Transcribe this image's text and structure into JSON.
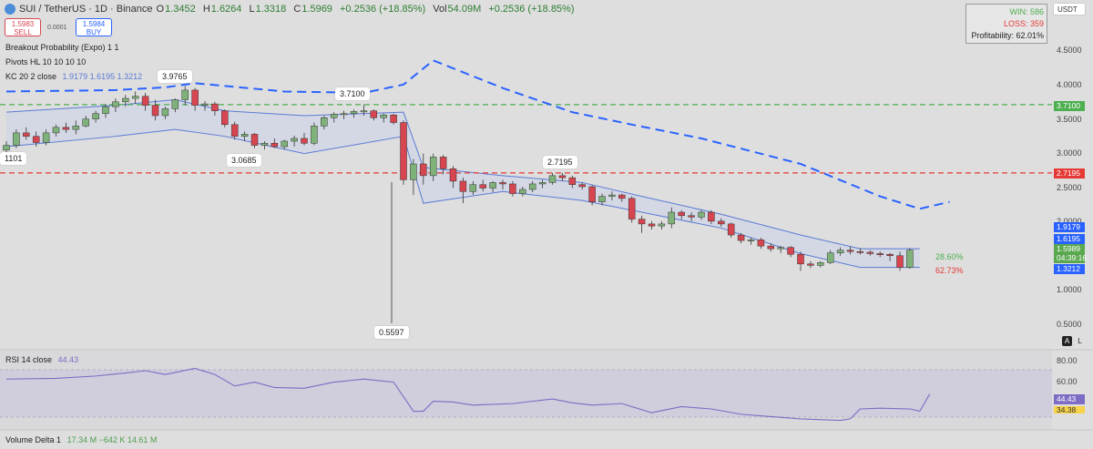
{
  "header": {
    "symbol": "SUI / TetherUS · 1D · Binance",
    "open_label": "O",
    "open": "1.3452",
    "high_label": "H",
    "high": "1.6264",
    "low_label": "L",
    "low": "1.3318",
    "close_label": "C",
    "close": "1.5969",
    "change": "+0.2536 (+18.85%)",
    "vol_label": "Vol",
    "vol": "54.09M",
    "vol_change": "+0.2536 (+18.85%)"
  },
  "trade": {
    "sell_price": "1.5983",
    "sell_label": "SELL",
    "spread": "0.0001",
    "buy_price": "1.5984",
    "buy_label": "BUY"
  },
  "indicators": {
    "breakout": "Breakout Probability (Expo) 1 1",
    "pivots": "Pivots HL 10 10 10 10",
    "kc_label": "KC 20 2 close",
    "kc_values": "1.9179  1.6195  1.3212"
  },
  "stats": {
    "win": "WIN: 586",
    "loss": "LOSS: 359",
    "profitability": "Profitability: 62.01%"
  },
  "currency": "USDT",
  "price_scale": [
    "4.5000",
    "4.0000",
    "3.5000",
    "3.0000",
    "2.5000",
    "2.0000",
    "1.5000",
    "1.0000",
    "0.5000"
  ],
  "price_tags": {
    "level_high": "3.7100",
    "level_mid": "2.7195",
    "kc_upper": "1.9179",
    "kc_basis": "1.6195",
    "last": "1.5989",
    "countdown": "04:39:16",
    "kc_lower": "1.3212"
  },
  "probabilities": {
    "up": "28.60%",
    "down": "62.73%"
  },
  "pivot_labels": [
    "1101",
    "3.9765",
    "3.0685",
    "3.7100",
    "0.5597",
    "2.7195"
  ],
  "rsi": {
    "label": "RSI 14 close",
    "value": "44.43",
    "scale": [
      "80.00",
      "60.00"
    ],
    "tag": "44.43",
    "ma_tag": "34.38"
  },
  "volume_delta": {
    "label": "Volume Delta 1",
    "values": "17.34 M  −642 K  14.61 M"
  },
  "controls": {
    "auto": "A",
    "log": "L"
  },
  "colors": {
    "up": "#7fb27a",
    "down": "#d64550",
    "kc": "#5b7bd5",
    "kc_dash": "#2962ff",
    "level_green": "#4caf50",
    "level_red": "#e53935",
    "rsi": "#7e6bc4"
  },
  "chart_data": {
    "type": "candlestick",
    "ylim": [
      0.35,
      4.65
    ],
    "levels": [
      3.71,
      2.7195
    ],
    "candles": [
      [
        3.05,
        3.18,
        2.98,
        3.12
      ],
      [
        3.12,
        3.35,
        3.08,
        3.3
      ],
      [
        3.3,
        3.38,
        3.2,
        3.25
      ],
      [
        3.25,
        3.32,
        3.1,
        3.16
      ],
      [
        3.16,
        3.35,
        3.12,
        3.3
      ],
      [
        3.3,
        3.42,
        3.25,
        3.38
      ],
      [
        3.38,
        3.45,
        3.3,
        3.35
      ],
      [
        3.35,
        3.48,
        3.28,
        3.4
      ],
      [
        3.4,
        3.55,
        3.38,
        3.5
      ],
      [
        3.5,
        3.62,
        3.45,
        3.58
      ],
      [
        3.58,
        3.72,
        3.52,
        3.68
      ],
      [
        3.68,
        3.8,
        3.6,
        3.75
      ],
      [
        3.75,
        3.85,
        3.68,
        3.8
      ],
      [
        3.8,
        3.9,
        3.72,
        3.83
      ],
      [
        3.83,
        3.88,
        3.62,
        3.7
      ],
      [
        3.7,
        3.78,
        3.48,
        3.55
      ],
      [
        3.55,
        3.68,
        3.5,
        3.65
      ],
      [
        3.65,
        3.8,
        3.6,
        3.78
      ],
      [
        3.78,
        3.98,
        3.7,
        3.92
      ],
      [
        3.92,
        3.95,
        3.62,
        3.7
      ],
      [
        3.7,
        3.76,
        3.62,
        3.72
      ],
      [
        3.72,
        3.75,
        3.55,
        3.62
      ],
      [
        3.62,
        3.64,
        3.38,
        3.42
      ],
      [
        3.42,
        3.46,
        3.2,
        3.25
      ],
      [
        3.25,
        3.32,
        3.18,
        3.28
      ],
      [
        3.28,
        3.3,
        3.08,
        3.12
      ],
      [
        3.12,
        3.18,
        3.06,
        3.15
      ],
      [
        3.15,
        3.22,
        3.08,
        3.1
      ],
      [
        3.1,
        3.2,
        3.06,
        3.18
      ],
      [
        3.18,
        3.26,
        3.1,
        3.22
      ],
      [
        3.22,
        3.3,
        3.12,
        3.15
      ],
      [
        3.15,
        3.45,
        3.12,
        3.4
      ],
      [
        3.4,
        3.55,
        3.35,
        3.52
      ],
      [
        3.52,
        3.6,
        3.45,
        3.57
      ],
      [
        3.57,
        3.62,
        3.5,
        3.58
      ],
      [
        3.58,
        3.64,
        3.52,
        3.61
      ],
      [
        3.61,
        3.71,
        3.55,
        3.62
      ],
      [
        3.62,
        3.64,
        3.48,
        3.52
      ],
      [
        3.52,
        3.58,
        3.45,
        3.56
      ],
      [
        3.56,
        3.58,
        3.42,
        3.45
      ],
      [
        3.45,
        3.48,
        2.55,
        2.62
      ],
      [
        2.62,
        2.92,
        2.4,
        2.85
      ],
      [
        2.85,
        3.0,
        2.55,
        2.68
      ],
      [
        2.68,
        3.0,
        2.6,
        2.95
      ],
      [
        2.95,
        2.98,
        2.7,
        2.78
      ],
      [
        2.78,
        2.82,
        2.5,
        2.6
      ],
      [
        2.6,
        2.65,
        2.28,
        2.45
      ],
      [
        2.45,
        2.6,
        2.4,
        2.55
      ],
      [
        2.55,
        2.62,
        2.45,
        2.5
      ],
      [
        2.5,
        2.6,
        2.44,
        2.58
      ],
      [
        2.58,
        2.62,
        2.48,
        2.56
      ],
      [
        2.56,
        2.6,
        2.38,
        2.42
      ],
      [
        2.42,
        2.52,
        2.38,
        2.48
      ],
      [
        2.48,
        2.6,
        2.44,
        2.56
      ],
      [
        2.56,
        2.62,
        2.5,
        2.58
      ],
      [
        2.58,
        2.72,
        2.55,
        2.68
      ],
      [
        2.68,
        2.72,
        2.6,
        2.65
      ],
      [
        2.65,
        2.68,
        2.5,
        2.55
      ],
      [
        2.55,
        2.58,
        2.48,
        2.52
      ],
      [
        2.52,
        2.54,
        2.25,
        2.3
      ],
      [
        2.3,
        2.42,
        2.25,
        2.38
      ],
      [
        2.38,
        2.45,
        2.32,
        2.4
      ],
      [
        2.4,
        2.42,
        2.3,
        2.35
      ],
      [
        2.35,
        2.38,
        2.0,
        2.05
      ],
      [
        2.05,
        2.1,
        1.85,
        1.98
      ],
      [
        1.98,
        2.02,
        1.9,
        1.95
      ],
      [
        1.95,
        2.02,
        1.9,
        1.98
      ],
      [
        1.98,
        2.22,
        1.92,
        2.15
      ],
      [
        2.15,
        2.18,
        2.05,
        2.1
      ],
      [
        2.1,
        2.15,
        2.02,
        2.08
      ],
      [
        2.08,
        2.18,
        2.04,
        2.15
      ],
      [
        2.15,
        2.18,
        1.98,
        2.02
      ],
      [
        2.02,
        2.06,
        1.94,
        1.98
      ],
      [
        1.98,
        2.0,
        1.78,
        1.82
      ],
      [
        1.82,
        1.85,
        1.7,
        1.74
      ],
      [
        1.74,
        1.78,
        1.68,
        1.75
      ],
      [
        1.75,
        1.78,
        1.62,
        1.66
      ],
      [
        1.66,
        1.7,
        1.58,
        1.62
      ],
      [
        1.62,
        1.66,
        1.56,
        1.64
      ],
      [
        1.64,
        1.66,
        1.5,
        1.54
      ],
      [
        1.54,
        1.58,
        1.3,
        1.4
      ],
      [
        1.4,
        1.44,
        1.34,
        1.38
      ],
      [
        1.38,
        1.44,
        1.35,
        1.42
      ],
      [
        1.42,
        1.6,
        1.4,
        1.56
      ],
      [
        1.56,
        1.64,
        1.52,
        1.6
      ],
      [
        1.6,
        1.65,
        1.54,
        1.58
      ],
      [
        1.58,
        1.63,
        1.54,
        1.57
      ],
      [
        1.57,
        1.6,
        1.52,
        1.55
      ],
      [
        1.55,
        1.58,
        1.5,
        1.54
      ],
      [
        1.54,
        1.56,
        1.44,
        1.52
      ],
      [
        1.52,
        1.58,
        1.3,
        1.35
      ],
      [
        1.35,
        1.63,
        1.33,
        1.6
      ]
    ],
    "kc_upper": [
      [
        0,
        3.9
      ],
      [
        11,
        3.92
      ],
      [
        16,
        3.96
      ],
      [
        19,
        4.02
      ],
      [
        28,
        3.9
      ],
      [
        36,
        3.88
      ],
      [
        40,
        4.0
      ],
      [
        43,
        4.35
      ],
      [
        50,
        3.95
      ],
      [
        57,
        3.6
      ],
      [
        63,
        3.42
      ],
      [
        70,
        3.22
      ],
      [
        80,
        2.85
      ],
      [
        88,
        2.38
      ],
      [
        92,
        2.2
      ],
      [
        95,
        2.3
      ]
    ],
    "kc_band": [
      [
        0,
        3.6,
        3.1
      ],
      [
        11,
        3.7,
        3.25
      ],
      [
        17,
        3.78,
        3.35
      ],
      [
        22,
        3.62,
        3.25
      ],
      [
        30,
        3.55,
        3.0
      ],
      [
        40,
        3.6,
        3.25
      ],
      [
        42,
        2.8,
        2.28
      ],
      [
        50,
        2.68,
        2.45
      ],
      [
        58,
        2.58,
        2.32
      ],
      [
        64,
        2.38,
        2.15
      ],
      [
        72,
        2.12,
        1.92
      ],
      [
        80,
        1.82,
        1.55
      ],
      [
        86,
        1.62,
        1.35
      ],
      [
        92,
        1.62,
        1.35
      ]
    ],
    "rsi": [
      [
        0,
        64
      ],
      [
        5,
        65
      ],
      [
        9,
        68
      ],
      [
        12,
        72
      ],
      [
        14,
        75
      ],
      [
        16,
        70
      ],
      [
        19,
        78
      ],
      [
        21,
        70
      ],
      [
        23,
        55
      ],
      [
        25,
        60
      ],
      [
        27,
        53
      ],
      [
        30,
        52
      ],
      [
        33,
        60
      ],
      [
        36,
        64
      ],
      [
        39,
        60
      ],
      [
        41,
        22
      ],
      [
        42,
        22
      ],
      [
        43,
        35
      ],
      [
        45,
        34
      ],
      [
        47,
        30
      ],
      [
        51,
        32
      ],
      [
        55,
        38
      ],
      [
        57,
        33
      ],
      [
        59,
        30
      ],
      [
        62,
        32
      ],
      [
        65,
        20
      ],
      [
        68,
        28
      ],
      [
        71,
        25
      ],
      [
        74,
        18
      ],
      [
        77,
        15
      ],
      [
        80,
        12
      ],
      [
        84,
        10
      ],
      [
        85,
        12
      ],
      [
        86,
        25
      ],
      [
        88,
        26
      ],
      [
        91,
        25
      ],
      [
        92,
        22
      ],
      [
        93,
        44.43
      ]
    ],
    "rsi_ylim": [
      0,
      100
    ]
  }
}
